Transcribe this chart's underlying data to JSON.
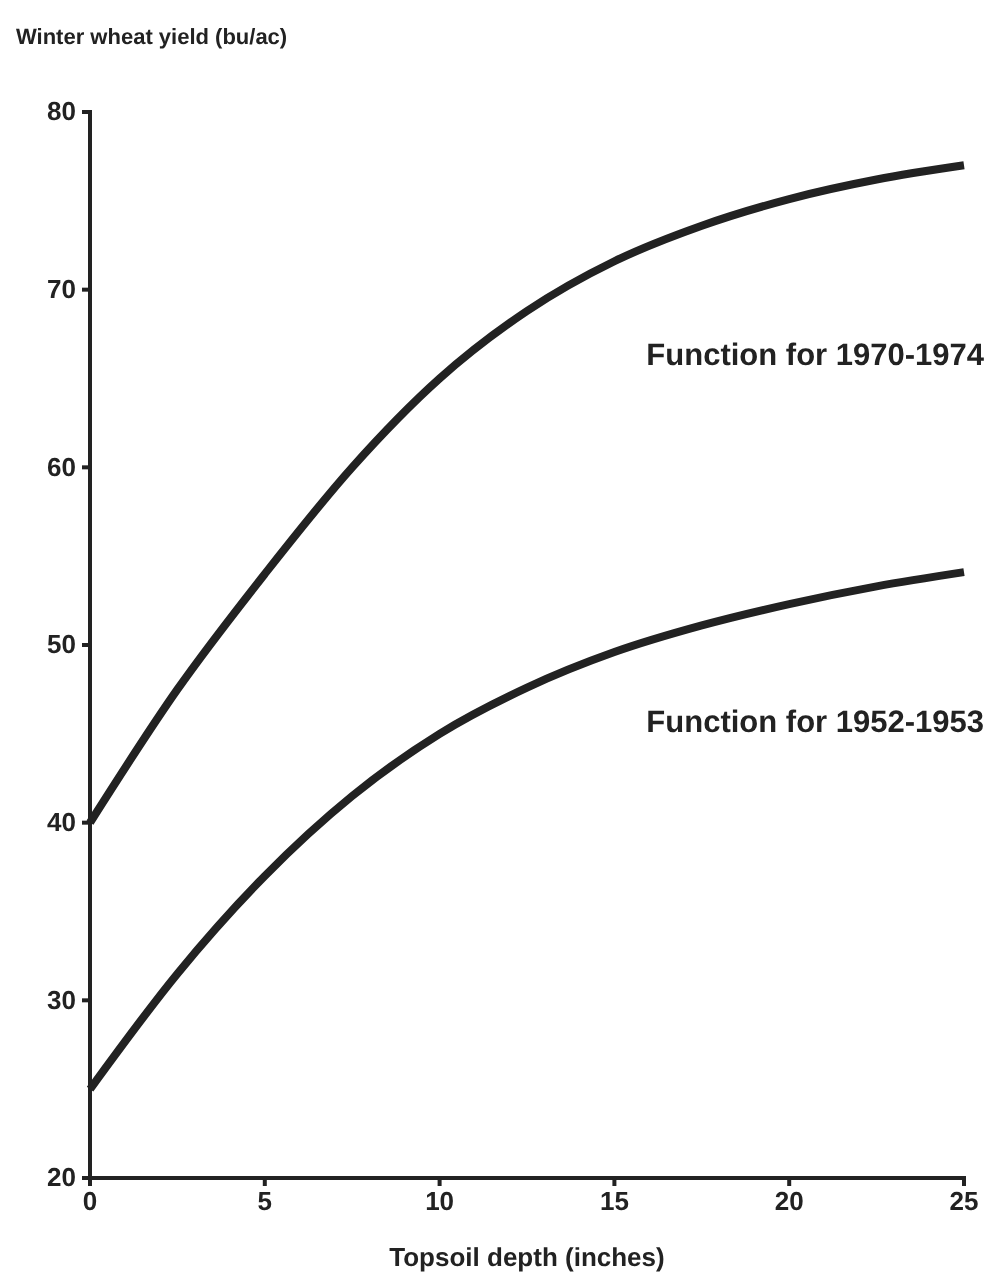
{
  "chart_data": {
    "type": "line",
    "ylabel": "Winter wheat yield (bu/ac)",
    "xlabel": "Topsoil depth (inches)",
    "xlim": [
      0,
      25
    ],
    "xticks": [
      0,
      5,
      10,
      15,
      20,
      25
    ],
    "ylim": [
      20,
      80
    ],
    "yticks": [
      20,
      30,
      40,
      50,
      60,
      70,
      80
    ],
    "grid": false,
    "marker": "none",
    "line_style": "solid",
    "series": [
      {
        "name": "Function for 1970-1974",
        "color": "#222222",
        "x": [
          0,
          2.5,
          5,
          7.5,
          10,
          12.5,
          15,
          17.5,
          20,
          22.5,
          25
        ],
        "values": [
          40,
          47.5,
          54,
          60,
          65,
          68.8,
          71.6,
          73.6,
          75.1,
          76.2,
          77
        ]
      },
      {
        "name": "Function for 1952-1953",
        "color": "#222222",
        "x": [
          0,
          2.5,
          5,
          7.5,
          10,
          12.5,
          15,
          17.5,
          20,
          22.5,
          25
        ],
        "values": [
          25,
          31.5,
          37,
          41.5,
          45,
          47.6,
          49.6,
          51.1,
          52.3,
          53.3,
          54.1
        ]
      }
    ]
  }
}
